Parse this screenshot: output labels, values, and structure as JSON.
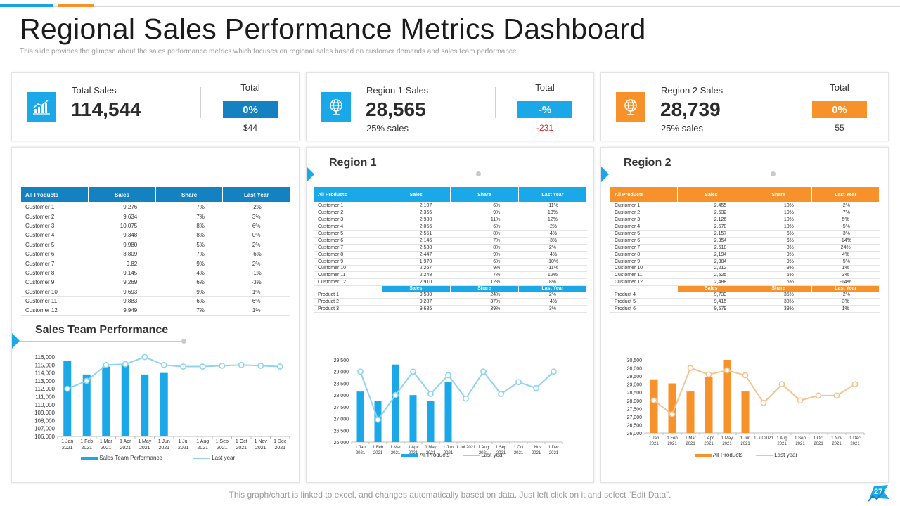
{
  "header": {
    "title": "Regional Sales Performance Metrics Dashboard",
    "subtitle": "This slide provides the glimpse about the sales performance metrics which focuses on regional sales based on customer demands and sales team performance."
  },
  "colors": {
    "blue_dark": "#1482c0",
    "blue": "#1aa8e8",
    "light_blue": "#8fd3f0",
    "orange": "#f7922a",
    "light_orange": "#f6c28e",
    "green": "#2aa52a",
    "red": "#e02828"
  },
  "kpis": [
    {
      "label": "Total Sales",
      "value": "114,544",
      "sub": "",
      "total_label": "Total",
      "badge": "0%",
      "total_value": "$44",
      "icon": "chart-icon"
    },
    {
      "label": "Region  1 Sales",
      "value": "28,565",
      "sub": "25% sales",
      "total_label": "Total",
      "badge": "-%",
      "total_value": "-231",
      "icon": "globe-icon"
    },
    {
      "label": "Region  2 Sales",
      "value": "28,739",
      "sub": "25% sales",
      "total_label": "Total",
      "badge": "0%",
      "total_value": "55",
      "icon": "globe-icon"
    }
  ],
  "tables": {
    "headers": [
      "All Products",
      "Sales",
      "Share",
      "Last Year"
    ],
    "subheaders": [
      "Sales",
      "Share",
      "Last Year"
    ],
    "total": [
      [
        "Customer  1",
        "9,276",
        "7%",
        "-2%"
      ],
      [
        "Customer  2",
        "9,634",
        "7%",
        "3%"
      ],
      [
        "Customer  3",
        "10,075",
        "8%",
        "6%"
      ],
      [
        "Customer  4",
        "9,348",
        "8%",
        "0%"
      ],
      [
        "Customer  5",
        "9,980",
        "5%",
        "2%"
      ],
      [
        "Customer  6",
        "8,809",
        "7%",
        "-6%"
      ],
      [
        "Customer  7",
        "9,82",
        "9%",
        "2%"
      ],
      [
        "Customer  8",
        "9,145",
        "4%",
        "-1%"
      ],
      [
        "Customer  9",
        "9,269",
        "6%",
        "-3%"
      ],
      [
        "Customer  10",
        "9,693",
        "9%",
        "1%"
      ],
      [
        "Customer  11",
        "9,883",
        "6%",
        "6%"
      ],
      [
        "Customer  12",
        "9,949",
        "7%",
        "1%"
      ]
    ],
    "region1_customers": [
      [
        "Customer 1",
        "2,107",
        "6%",
        "-11%"
      ],
      [
        "Customer 2",
        "2,366",
        "9%",
        "13%"
      ],
      [
        "Customer 3",
        "2,980",
        "11%",
        "12%"
      ],
      [
        "Customer 4",
        "2,056",
        "6%",
        "-2%"
      ],
      [
        "Customer 5",
        "2,551",
        "8%",
        "-4%"
      ],
      [
        "Customer 6",
        "2,146",
        "7%",
        "-3%"
      ],
      [
        "Customer 7",
        "2,538",
        "8%",
        "2%"
      ],
      [
        "Customer 8",
        "2,447",
        "9%",
        "-4%"
      ],
      [
        "Customer 9",
        "1,970",
        "6%",
        "-10%"
      ],
      [
        "Customer 10",
        "2,267",
        "9%",
        "-11%"
      ],
      [
        "Customer 11",
        "2,248",
        "7%",
        "12%"
      ],
      [
        "Customer 12",
        "2,910",
        "12%",
        "8%"
      ]
    ],
    "region1_products": [
      [
        "Product 1",
        "9,580",
        "24%",
        "2%"
      ],
      [
        "Product 2",
        "9,287",
        "37%",
        "-4%"
      ],
      [
        "Product 3",
        "9,685",
        "39%",
        "3%"
      ]
    ],
    "region2_customers": [
      [
        "Customer 1",
        "2,455",
        "10%",
        "-2%"
      ],
      [
        "Customer 2",
        "2,632",
        "10%",
        "-7%"
      ],
      [
        "Customer 3",
        "2,126",
        "10%",
        "5%"
      ],
      [
        "Customer 4",
        "2,578",
        "10%",
        "-5%"
      ],
      [
        "Customer 5",
        "2,157",
        "6%",
        "-3%"
      ],
      [
        "Customer 6",
        "2,354",
        "6%",
        "-14%"
      ],
      [
        "Customer 7",
        "2,618",
        "8%",
        "24%"
      ],
      [
        "Customer 8",
        "2,194",
        "9%",
        "4%"
      ],
      [
        "Customer 9",
        "2,384",
        "9%",
        "-5%"
      ],
      [
        "Customer 10",
        "2,212",
        "9%",
        "1%"
      ],
      [
        "Customer 11",
        "2,525",
        "6%",
        "3%"
      ],
      [
        "Customer 12",
        "2,488",
        "6%",
        "-14%"
      ]
    ],
    "region2_products": [
      [
        "Product 4",
        "9,733",
        "35%",
        "-2%"
      ],
      [
        "Product 5",
        "9,415",
        "38%",
        "3%"
      ],
      [
        "Product 6",
        "9,579",
        "39%",
        "1%"
      ]
    ]
  },
  "sections": {
    "team": "Sales Team Performance",
    "region1": "Region 1",
    "region2": "Region 2"
  },
  "chart_data": [
    {
      "type": "bar",
      "categories": [
        "1 Jan\n2021",
        "1 Feb\n2021",
        "1 Mar\n2021",
        "1 Apr\n2021",
        "1 May\n2021",
        "1 Jun\n2021",
        "1 Jul\n2021",
        "1 Aug\n2021",
        "1 Sep\n2021",
        "1 Oct\n2021",
        "1 Nov\n2021",
        "1 Dec\n2021"
      ],
      "series": [
        {
          "name": "Sales Team Performance",
          "kind": "bar",
          "color": "#1aa8e8",
          "values": [
            115500,
            113800,
            114800,
            115000,
            113800,
            114000,
            null,
            null,
            null,
            null,
            null,
            null
          ]
        },
        {
          "name": "Last year",
          "kind": "line",
          "color": "#8fd3f0",
          "values": [
            112000,
            113000,
            115000,
            115100,
            116000,
            115000,
            114800,
            114800,
            114900,
            115000,
            114900,
            114800
          ]
        }
      ],
      "yticks": [
        "106,000",
        "107,000",
        "108,000",
        "109,000",
        "110,000",
        "111,000",
        "112,000",
        "113,000",
        "114,000",
        "115,000",
        "116,000"
      ],
      "ylim": [
        106000,
        116000
      ]
    },
    {
      "type": "bar",
      "categories": [
        "1 Jan\n2021",
        "1 Feb\n2021",
        "1 Mar\n2021",
        "1 Apr\n2021",
        "1 May\n2021",
        "1 Jun\n2021",
        "1 Jul 2021",
        "1 Aug\n2021",
        "1 Sep\n2021",
        "1 Oct\n2021",
        "1 Nov\n2021",
        "1 Dec\n2021"
      ],
      "series": [
        {
          "name": "All Products",
          "kind": "bar",
          "color": "#1aa8e8",
          "values": [
            28150,
            27750,
            29300,
            28000,
            27750,
            28550,
            null,
            null,
            null,
            null,
            null,
            null
          ]
        },
        {
          "name": "Last year",
          "kind": "line",
          "color": "#8fd3f0",
          "values": [
            29000,
            26950,
            28000,
            29000,
            28050,
            28850,
            27850,
            29000,
            28050,
            28550,
            28300,
            29000
          ]
        }
      ],
      "yticks": [
        "26,000",
        "26,500",
        "27,000",
        "27,500",
        "28,000",
        "28,500",
        "29,000",
        "29,500"
      ],
      "ylim": [
        26000,
        29500
      ]
    },
    {
      "type": "bar",
      "categories": [
        "1 Jan\n2021",
        "1 Feb\n2021",
        "1 Mar\n2021",
        "1 Apr\n2021",
        "1 May\n2021",
        "1 Jun\n2021",
        "1 Jul 2021",
        "1 Aug\n2021",
        "1 Sep\n2021",
        "1 Oct\n2021",
        "1 Nov\n2021",
        "1 Dec\n2021"
      ],
      "series": [
        {
          "name": "All Products",
          "kind": "bar",
          "color": "#f7922a",
          "values": [
            29300,
            29050,
            28550,
            29450,
            30500,
            28550,
            null,
            null,
            null,
            null,
            null,
            null
          ]
        },
        {
          "name": "Last year",
          "kind": "line",
          "color": "#f6c28e",
          "values": [
            28000,
            27150,
            30000,
            29600,
            29850,
            29550,
            27850,
            29000,
            28000,
            28300,
            28300,
            29000
          ]
        }
      ],
      "yticks": [
        "26,000",
        "26,500",
        "27,000",
        "27,500",
        "28,000",
        "28,500",
        "29,000",
        "29,500",
        "30,000",
        "30,500"
      ],
      "ylim": [
        26000,
        30500
      ]
    }
  ],
  "footer": {
    "note": "This graph/chart is linked to excel, and changes automatically based on data. Just left click on it and select “Edit Data”.",
    "page": "27"
  }
}
